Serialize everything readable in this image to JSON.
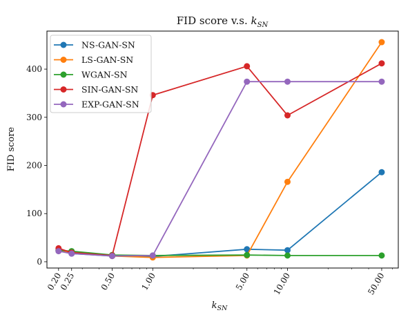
{
  "chart_data": {
    "type": "line",
    "title": "FID score v.s. ",
    "title_math": "k",
    "title_math_sub": "SN",
    "xlabel": "k",
    "xlabel_sub": "SN",
    "ylabel": "FID score",
    "xscale": "log",
    "xlim": [
      0.164,
      66.4
    ],
    "ylim": [
      -13,
      479
    ],
    "x": [
      0.2,
      0.25,
      0.5,
      1.0,
      5.0,
      10.0,
      50.0
    ],
    "xtick_labels": [
      "0.20",
      "0.25",
      "0.50",
      "1.00",
      "5.00",
      "10.00",
      "50.00"
    ],
    "yticks": [
      0,
      100,
      200,
      300,
      400
    ],
    "ytick_labels": [
      "0",
      "100",
      "200",
      "300",
      "400"
    ],
    "grid": false,
    "legend_position": "top-left",
    "series": [
      {
        "name": "NS-GAN-SN",
        "color": "#1f77b4",
        "values": [
          23,
          17,
          12,
          11,
          26,
          24,
          186
        ]
      },
      {
        "name": "LS-GAN-SN",
        "color": "#ff7f0e",
        "values": [
          23,
          20,
          12,
          9,
          13,
          166,
          456
        ]
      },
      {
        "name": "WGAN-SN",
        "color": "#2ca02c",
        "values": [
          24,
          22,
          14,
          13,
          14,
          13,
          13
        ]
      },
      {
        "name": "SIN-GAN-SN",
        "color": "#d62728",
        "values": [
          28,
          19,
          13,
          346,
          406,
          304,
          412
        ]
      },
      {
        "name": "EXP-GAN-SN",
        "color": "#9467bd",
        "values": [
          22,
          17,
          12,
          13,
          374,
          374,
          374
        ]
      }
    ]
  }
}
